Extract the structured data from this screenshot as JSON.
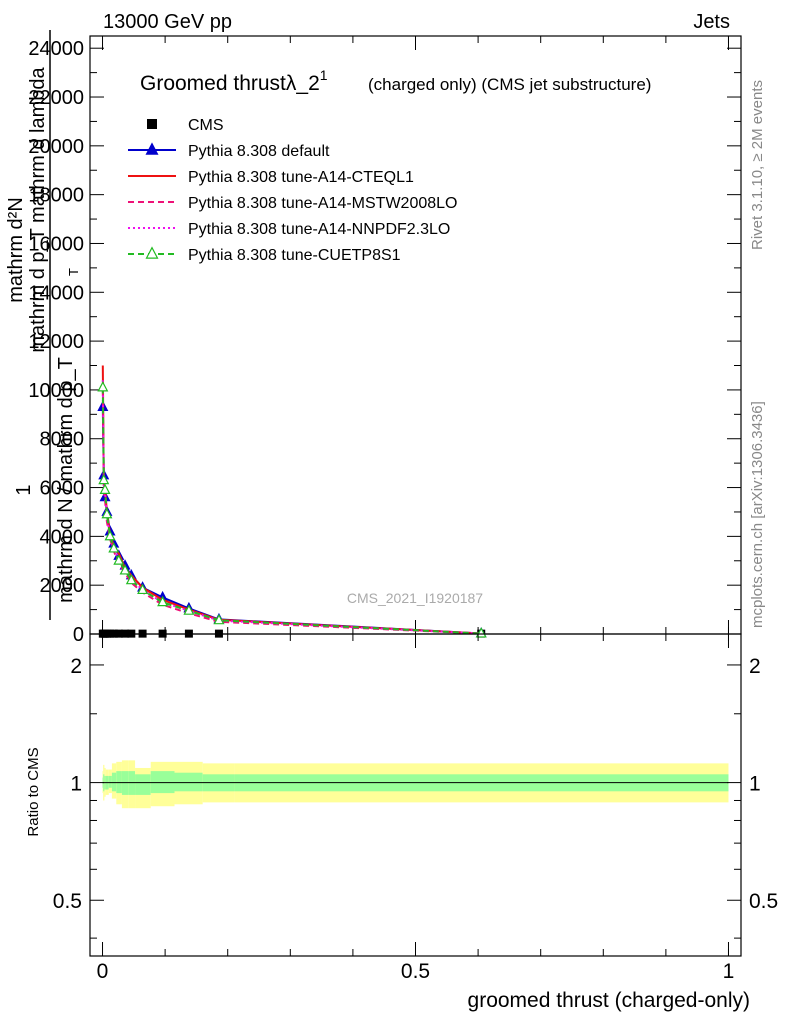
{
  "header": {
    "energy_label": "13000 GeV pp",
    "category_label": "Jets",
    "rivet_label": "Rivet 3.1.10, ≥ 2M events",
    "mcplots_label": "mcplots.cern.ch [arXiv:1306.3436]",
    "analysis_label": "CMS_2021_I1920187"
  },
  "chart_data": [
    {
      "type": "line",
      "panel": "main",
      "title": "Groomed thrustλ_2",
      "title_sup": "1",
      "subtitle": "(charged only) (CMS jet substructure)",
      "ylabel_numerator": "mathrm d²N",
      "ylabel_numerator2": "mathrm d p_T mathrm d lambda",
      "ylabel_one": "1",
      "ylabel_denominator": "mathrm d N / mathrm d p_T",
      "ylabel_denominator_sub": "T",
      "xlim": [
        -0.02,
        1.02
      ],
      "ylim": [
        0,
        24500
      ],
      "yticks": [
        0,
        2000,
        4000,
        6000,
        8000,
        10000,
        12000,
        14000,
        16000,
        18000,
        20000,
        22000,
        24000
      ],
      "ytick_labels": [
        "0",
        "2000",
        "4000",
        "6000",
        "8000",
        "10000",
        "12000",
        "14000",
        "16000",
        "18000",
        "20000",
        "22000",
        "24000"
      ],
      "legend_position": "top-left",
      "series": [
        {
          "name": "CMS",
          "color": "#000000",
          "marker": "square",
          "line": "none",
          "x": [
            0.0005,
            0.002,
            0.004,
            0.007,
            0.012,
            0.018,
            0.026,
            0.036,
            0.046,
            0.064,
            0.096,
            0.138,
            0.186,
            0.605
          ],
          "y": [
            15,
            15,
            15,
            15,
            15,
            15,
            15,
            15,
            15,
            15,
            15,
            15,
            15,
            15
          ]
        },
        {
          "name": "Pythia 8.308 default",
          "color": "#0000cc",
          "marker": "triangle",
          "line": "solid",
          "x": [
            0.0005,
            0.002,
            0.004,
            0.007,
            0.012,
            0.018,
            0.026,
            0.036,
            0.046,
            0.064,
            0.096,
            0.138,
            0.186,
            0.605
          ],
          "y": [
            9300,
            6500,
            5600,
            5000,
            4200,
            3700,
            3200,
            2800,
            2400,
            1900,
            1500,
            1050,
            600,
            20
          ]
        },
        {
          "name": "Pythia 8.308 tune-A14-CTEQL1",
          "color": "#ee1111",
          "marker": "none",
          "line": "solid",
          "x": [
            0.0005,
            0.002,
            0.004,
            0.007,
            0.012,
            0.018,
            0.026,
            0.036,
            0.046,
            0.064,
            0.096,
            0.138,
            0.186,
            0.605
          ],
          "y": [
            11000,
            6200,
            6000,
            5000,
            4100,
            3600,
            3300,
            2700,
            2400,
            1900,
            1400,
            1000,
            580,
            20
          ]
        },
        {
          "name": "Pythia 8.308 tune-A14-MSTW2008LO",
          "color": "#ee1177",
          "marker": "none",
          "line": "dashed",
          "x": [
            0.0005,
            0.002,
            0.004,
            0.007,
            0.012,
            0.018,
            0.026,
            0.036,
            0.046,
            0.064,
            0.096,
            0.138,
            0.186,
            0.605
          ],
          "y": [
            10000,
            5900,
            5500,
            4600,
            3900,
            3400,
            2900,
            2500,
            2100,
            1700,
            1200,
            850,
            500,
            15
          ]
        },
        {
          "name": "Pythia 8.308 tune-A14-NNPDF2.3LO",
          "color": "#ee11ee",
          "marker": "none",
          "line": "dotted",
          "x": [
            0.0005,
            0.002,
            0.004,
            0.007,
            0.012,
            0.018,
            0.026,
            0.036,
            0.046,
            0.064,
            0.096,
            0.138,
            0.186,
            0.605
          ],
          "y": [
            10400,
            6100,
            5800,
            4800,
            4000,
            3500,
            3100,
            2600,
            2250,
            1800,
            1300,
            950,
            550,
            18
          ]
        },
        {
          "name": "Pythia 8.308 tune-CUETP8S1",
          "color": "#22bb22",
          "marker": "triangle-open",
          "line": "dashed",
          "x": [
            0.0005,
            0.002,
            0.004,
            0.007,
            0.012,
            0.018,
            0.026,
            0.036,
            0.046,
            0.064,
            0.096,
            0.138,
            0.186,
            0.605
          ],
          "y": [
            10100,
            6300,
            5900,
            4900,
            4000,
            3500,
            3000,
            2600,
            2200,
            1800,
            1300,
            950,
            560,
            18
          ]
        }
      ]
    },
    {
      "type": "area",
      "panel": "ratio",
      "ylabel": "Ratio to CMS",
      "xlabel": "groomed thrust (charged-only)",
      "xlim": [
        -0.02,
        1.02
      ],
      "ylim": [
        0.36,
        2.4
      ],
      "log_scale": true,
      "xticks": [
        0,
        0.5,
        1
      ],
      "xtick_labels": [
        "0",
        "0.5",
        "1"
      ],
      "yticks": [
        0.5,
        1,
        2
      ],
      "ytick_labels": [
        "0.5",
        "1",
        "2"
      ],
      "bins": [
        0,
        0.001,
        0.003,
        0.005,
        0.01,
        0.015,
        0.022,
        0.031,
        0.041,
        0.052,
        0.077,
        0.115,
        0.16,
        0.211,
        1.0
      ],
      "band_total": {
        "low": [
          0.94,
          0.9,
          0.92,
          0.93,
          0.94,
          0.91,
          0.88,
          0.86,
          0.86,
          0.86,
          0.87,
          0.88,
          0.89,
          0.89
        ],
        "high": [
          1.07,
          1.11,
          1.09,
          1.08,
          1.08,
          1.12,
          1.13,
          1.14,
          1.14,
          1.09,
          1.13,
          1.13,
          1.12,
          1.12
        ]
      },
      "band_stat": {
        "low": [
          0.97,
          0.95,
          0.96,
          0.96,
          0.97,
          0.95,
          0.94,
          0.93,
          0.93,
          0.93,
          0.94,
          0.95,
          0.95,
          0.95
        ],
        "high": [
          1.03,
          1.05,
          1.04,
          1.04,
          1.04,
          1.06,
          1.07,
          1.07,
          1.07,
          1.05,
          1.07,
          1.06,
          1.05,
          1.05
        ]
      },
      "band_colors": {
        "total": "#ffff99",
        "stat": "#99ff99"
      },
      "reference_line": 1
    }
  ]
}
